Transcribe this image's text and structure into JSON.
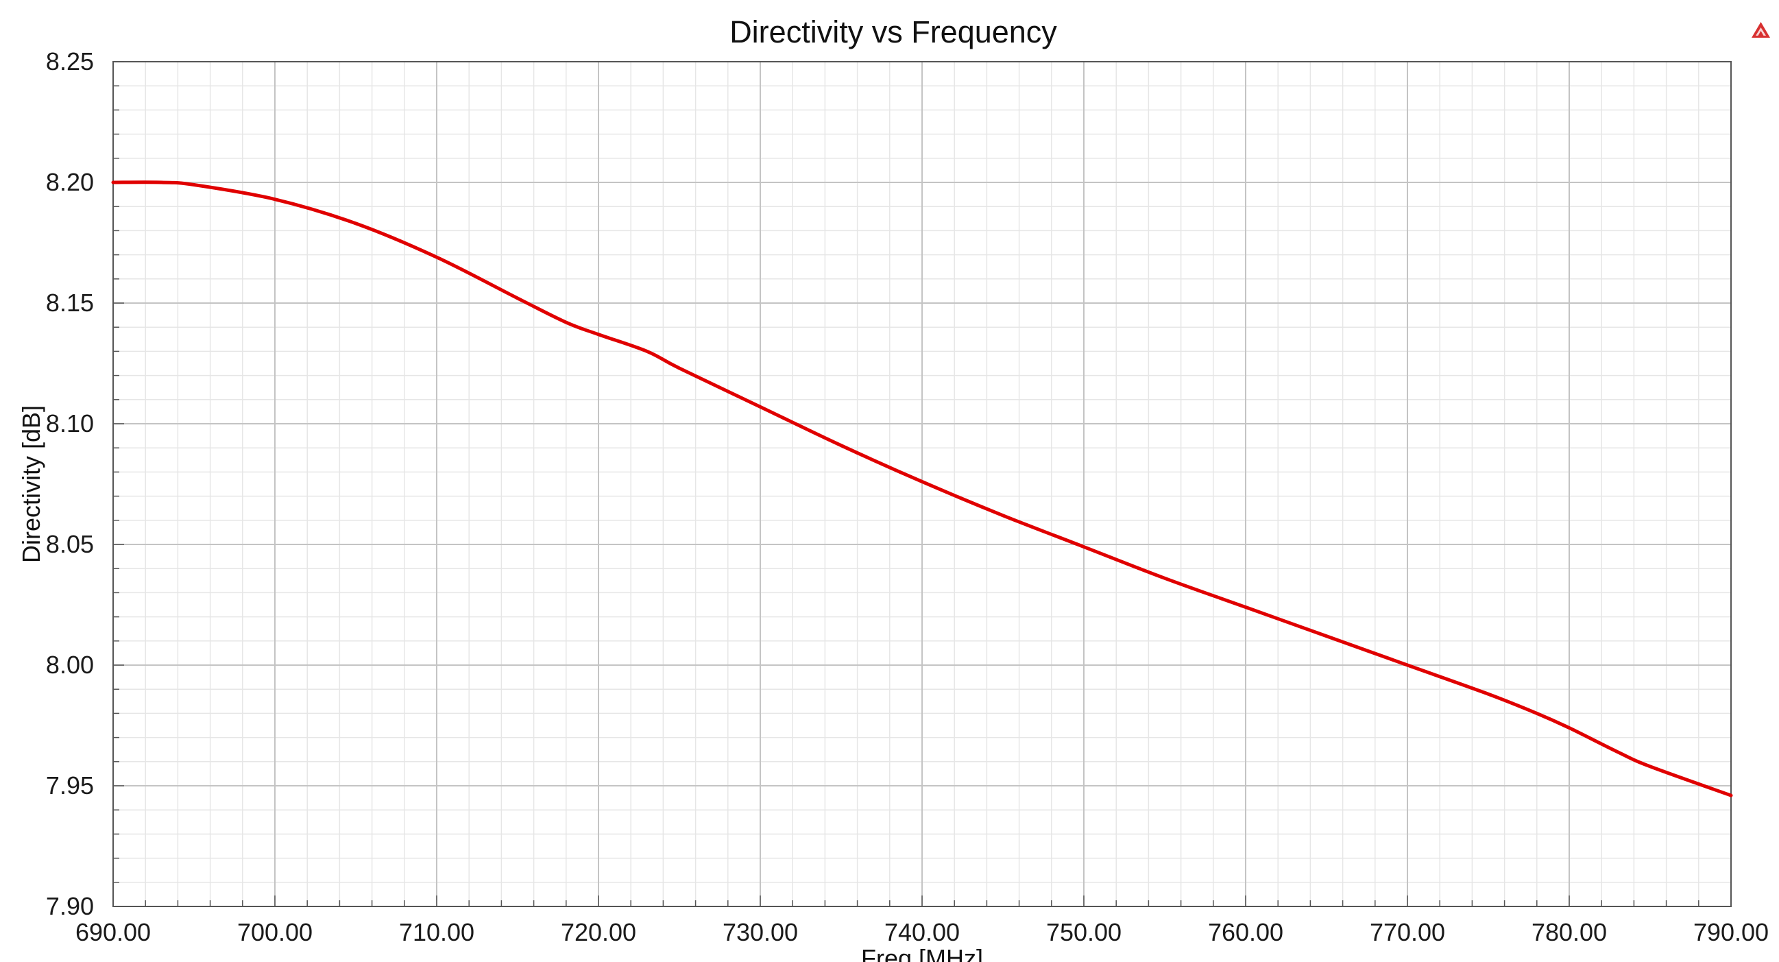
{
  "chart_data": {
    "type": "line",
    "title": "Directivity vs Frequency",
    "xlabel": "Freq [MHz]",
    "ylabel": "Directivity [dB]",
    "xlim": [
      690,
      790
    ],
    "ylim": [
      7.9,
      8.25
    ],
    "x_ticks": [
      "690.00",
      "700.00",
      "710.00",
      "720.00",
      "730.00",
      "740.00",
      "750.00",
      "760.00",
      "770.00",
      "780.00",
      "790.00"
    ],
    "y_ticks": [
      "7.90",
      "7.95",
      "8.00",
      "8.05",
      "8.10",
      "8.15",
      "8.20",
      "8.25"
    ],
    "grid": true,
    "legend": "none",
    "series": [
      {
        "color": "#e00000",
        "x": [
          690,
          693,
          695,
          700,
          705,
          710,
          715,
          718,
          720,
          723,
          725,
          730,
          735,
          740,
          745,
          750,
          755,
          760,
          765,
          770,
          775,
          778,
          780,
          783,
          785,
          790
        ],
        "y": [
          8.2,
          8.2,
          8.199,
          8.193,
          8.183,
          8.169,
          8.152,
          8.142,
          8.137,
          8.13,
          8.123,
          8.107,
          8.091,
          8.076,
          8.062,
          8.049,
          8.036,
          8.024,
          8.012,
          8.0,
          7.988,
          7.98,
          7.974,
          7.964,
          7.958,
          7.946
        ]
      }
    ]
  },
  "logo": {
    "name": "ansys-triangle-logo",
    "color": "#d83030"
  }
}
